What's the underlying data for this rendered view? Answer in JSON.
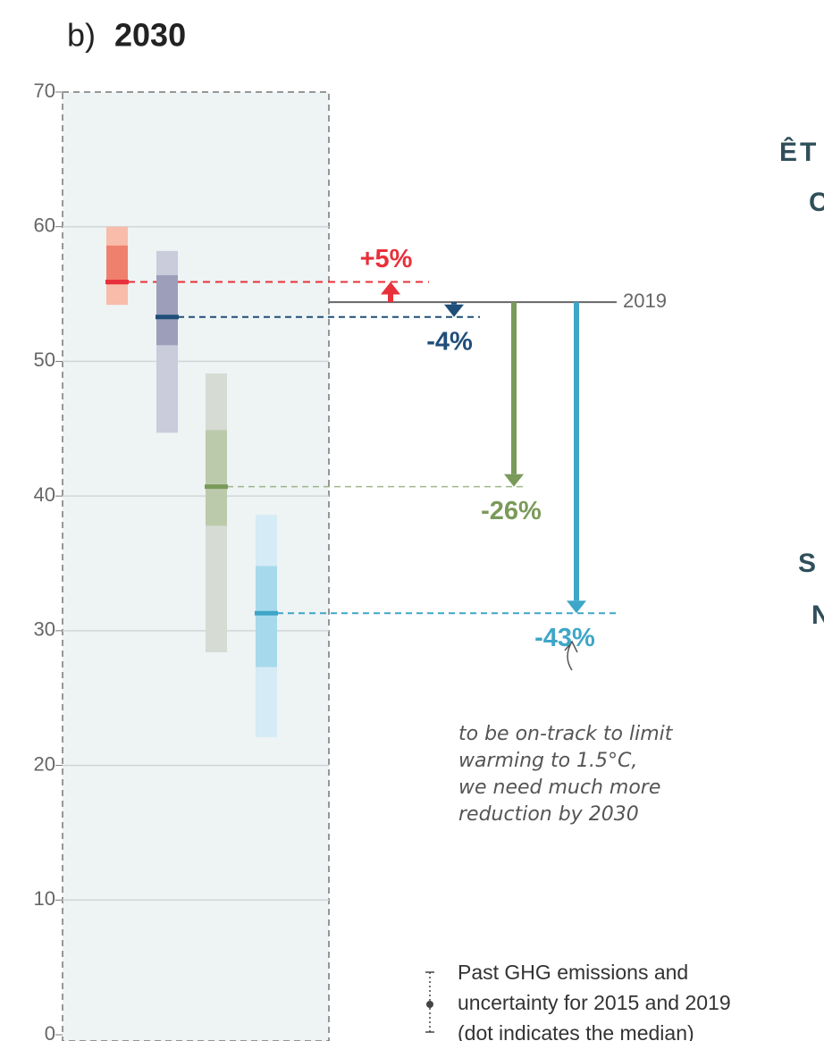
{
  "chart_data": {
    "type": "range",
    "panel_label": "b)",
    "title": "2030",
    "ylim": [
      0,
      70
    ],
    "yticks": [
      0,
      10,
      20,
      30,
      40,
      50,
      60,
      70
    ],
    "grid": true,
    "reference": {
      "label": "2019",
      "value": 54.4
    },
    "series": [
      {
        "color": "#e8303a",
        "light": "#f8bcaa",
        "mid": "#f0806e",
        "range": [
          54.2,
          60
        ],
        "likely": [
          55.7,
          58.6
        ],
        "median": 55.9,
        "change": 5,
        "change_label": "+5%"
      },
      {
        "color": "#1f4e79",
        "light": "#cacbdb",
        "mid": "#9d9eba",
        "range": [
          44.7,
          58.2
        ],
        "likely": [
          51.2,
          56.4
        ],
        "median": 53.3,
        "change": -4,
        "change_label": "-4%"
      },
      {
        "color": "#7a9a5a",
        "light": "#d6dbd3",
        "mid": "#bccaac",
        "range": [
          28.4,
          49.1
        ],
        "likely": [
          37.8,
          44.9
        ],
        "median": 40.7,
        "change": -26,
        "change_label": "-26%"
      },
      {
        "color": "#3ea6c8",
        "light": "#d5ebf5",
        "mid": "#a6d9eb",
        "range": [
          22.1,
          38.6
        ],
        "likely": [
          27.3,
          34.8
        ],
        "median": 31.3,
        "change": -43,
        "change_label": "-43%"
      }
    ],
    "annotation": [
      "to be on-track to limit",
      "warming to 1.5°C,",
      "we need much more",
      "reduction by 2030"
    ],
    "legend": [
      "Past GHG emissions and",
      "uncertainty for 2015 and 2019",
      "(dot indicates the median)"
    ],
    "side_text": [
      "ÊT",
      "C",
      "S",
      "N"
    ]
  }
}
